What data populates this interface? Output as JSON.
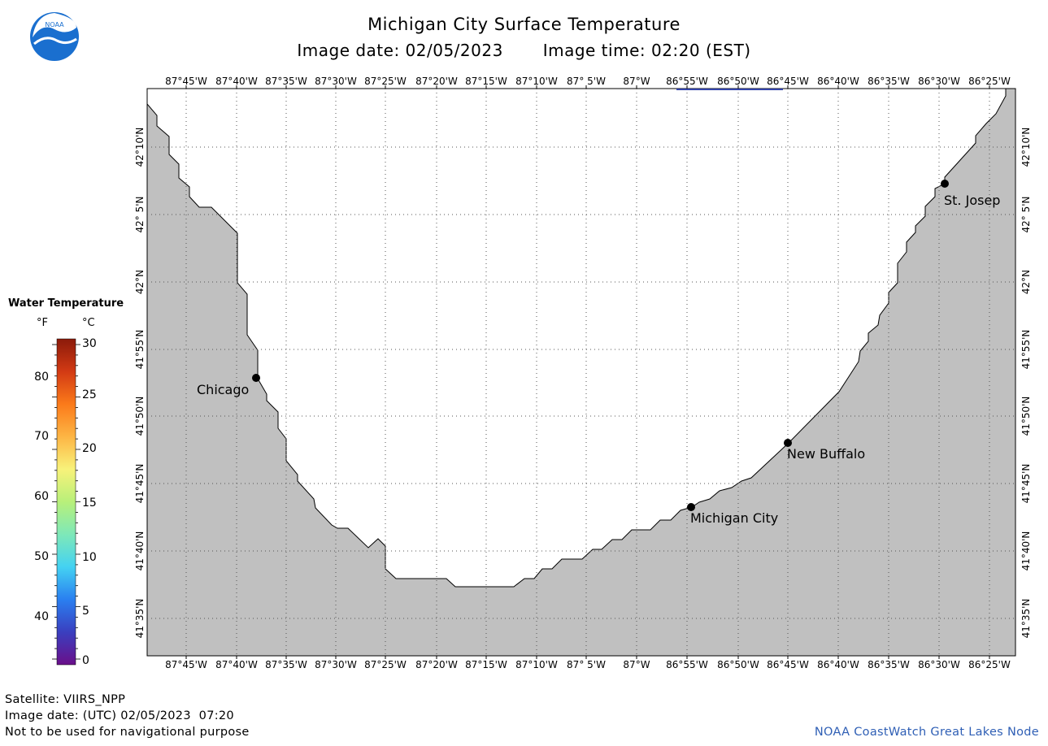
{
  "header": {
    "title": "Michigan City Surface Temperature",
    "image_date": "Image date: 02/05/2023",
    "image_time": "Image time: 02:20 (EST)"
  },
  "logo": {
    "text": "NOAA",
    "icon": "noaa-logo-icon"
  },
  "map": {
    "longitude_labels": [
      "87°45'W",
      "87°40'W",
      "87°35'W",
      "87°30'W",
      "87°25'W",
      "87°20'W",
      "87°15'W",
      "87°10'W",
      "87° 5'W",
      "87°W",
      "86°55'W",
      "86°50'W",
      "86°45'W",
      "86°40'W",
      "86°35'W",
      "86°30'W",
      "86°25'W"
    ],
    "latitude_labels": [
      "42°10'N",
      "42° 5'N",
      "42°N",
      "41°55'N",
      "41°50'N",
      "41°45'N",
      "41°40'N",
      "41°35'N"
    ],
    "cities": [
      {
        "name": "Chicago"
      },
      {
        "name": "Michigan City"
      },
      {
        "name": "New Buffalo"
      },
      {
        "name": "St. Josep"
      }
    ],
    "colors": {
      "land": "#c0c0c0",
      "water": "#ffffff",
      "grid": "#555555",
      "scale_mark": "#3344aa"
    }
  },
  "legend": {
    "title": "Water Temperature",
    "unit_f": "°F",
    "unit_c": "°C",
    "f_ticks": [
      "80",
      "70",
      "60",
      "50",
      "40"
    ],
    "c_ticks": [
      "30",
      "25",
      "20",
      "15",
      "10",
      "5",
      "0"
    ],
    "colors": [
      "#6a0f8a",
      "#3a3fbf",
      "#2a7ff0",
      "#44d2f2",
      "#7ee8b8",
      "#b8f07a",
      "#f8f27a",
      "#fdb544",
      "#fb7a1a",
      "#d23a14",
      "#8b1a0a"
    ]
  },
  "footer": {
    "satellite": "Satellite: VIIRS_NPP",
    "utc_date": "Image date: (UTC) 02/05/2023  07:20",
    "disclaimer": "Not to be used for navigational purpose",
    "credit": "NOAA CoastWatch Great Lakes Node"
  }
}
